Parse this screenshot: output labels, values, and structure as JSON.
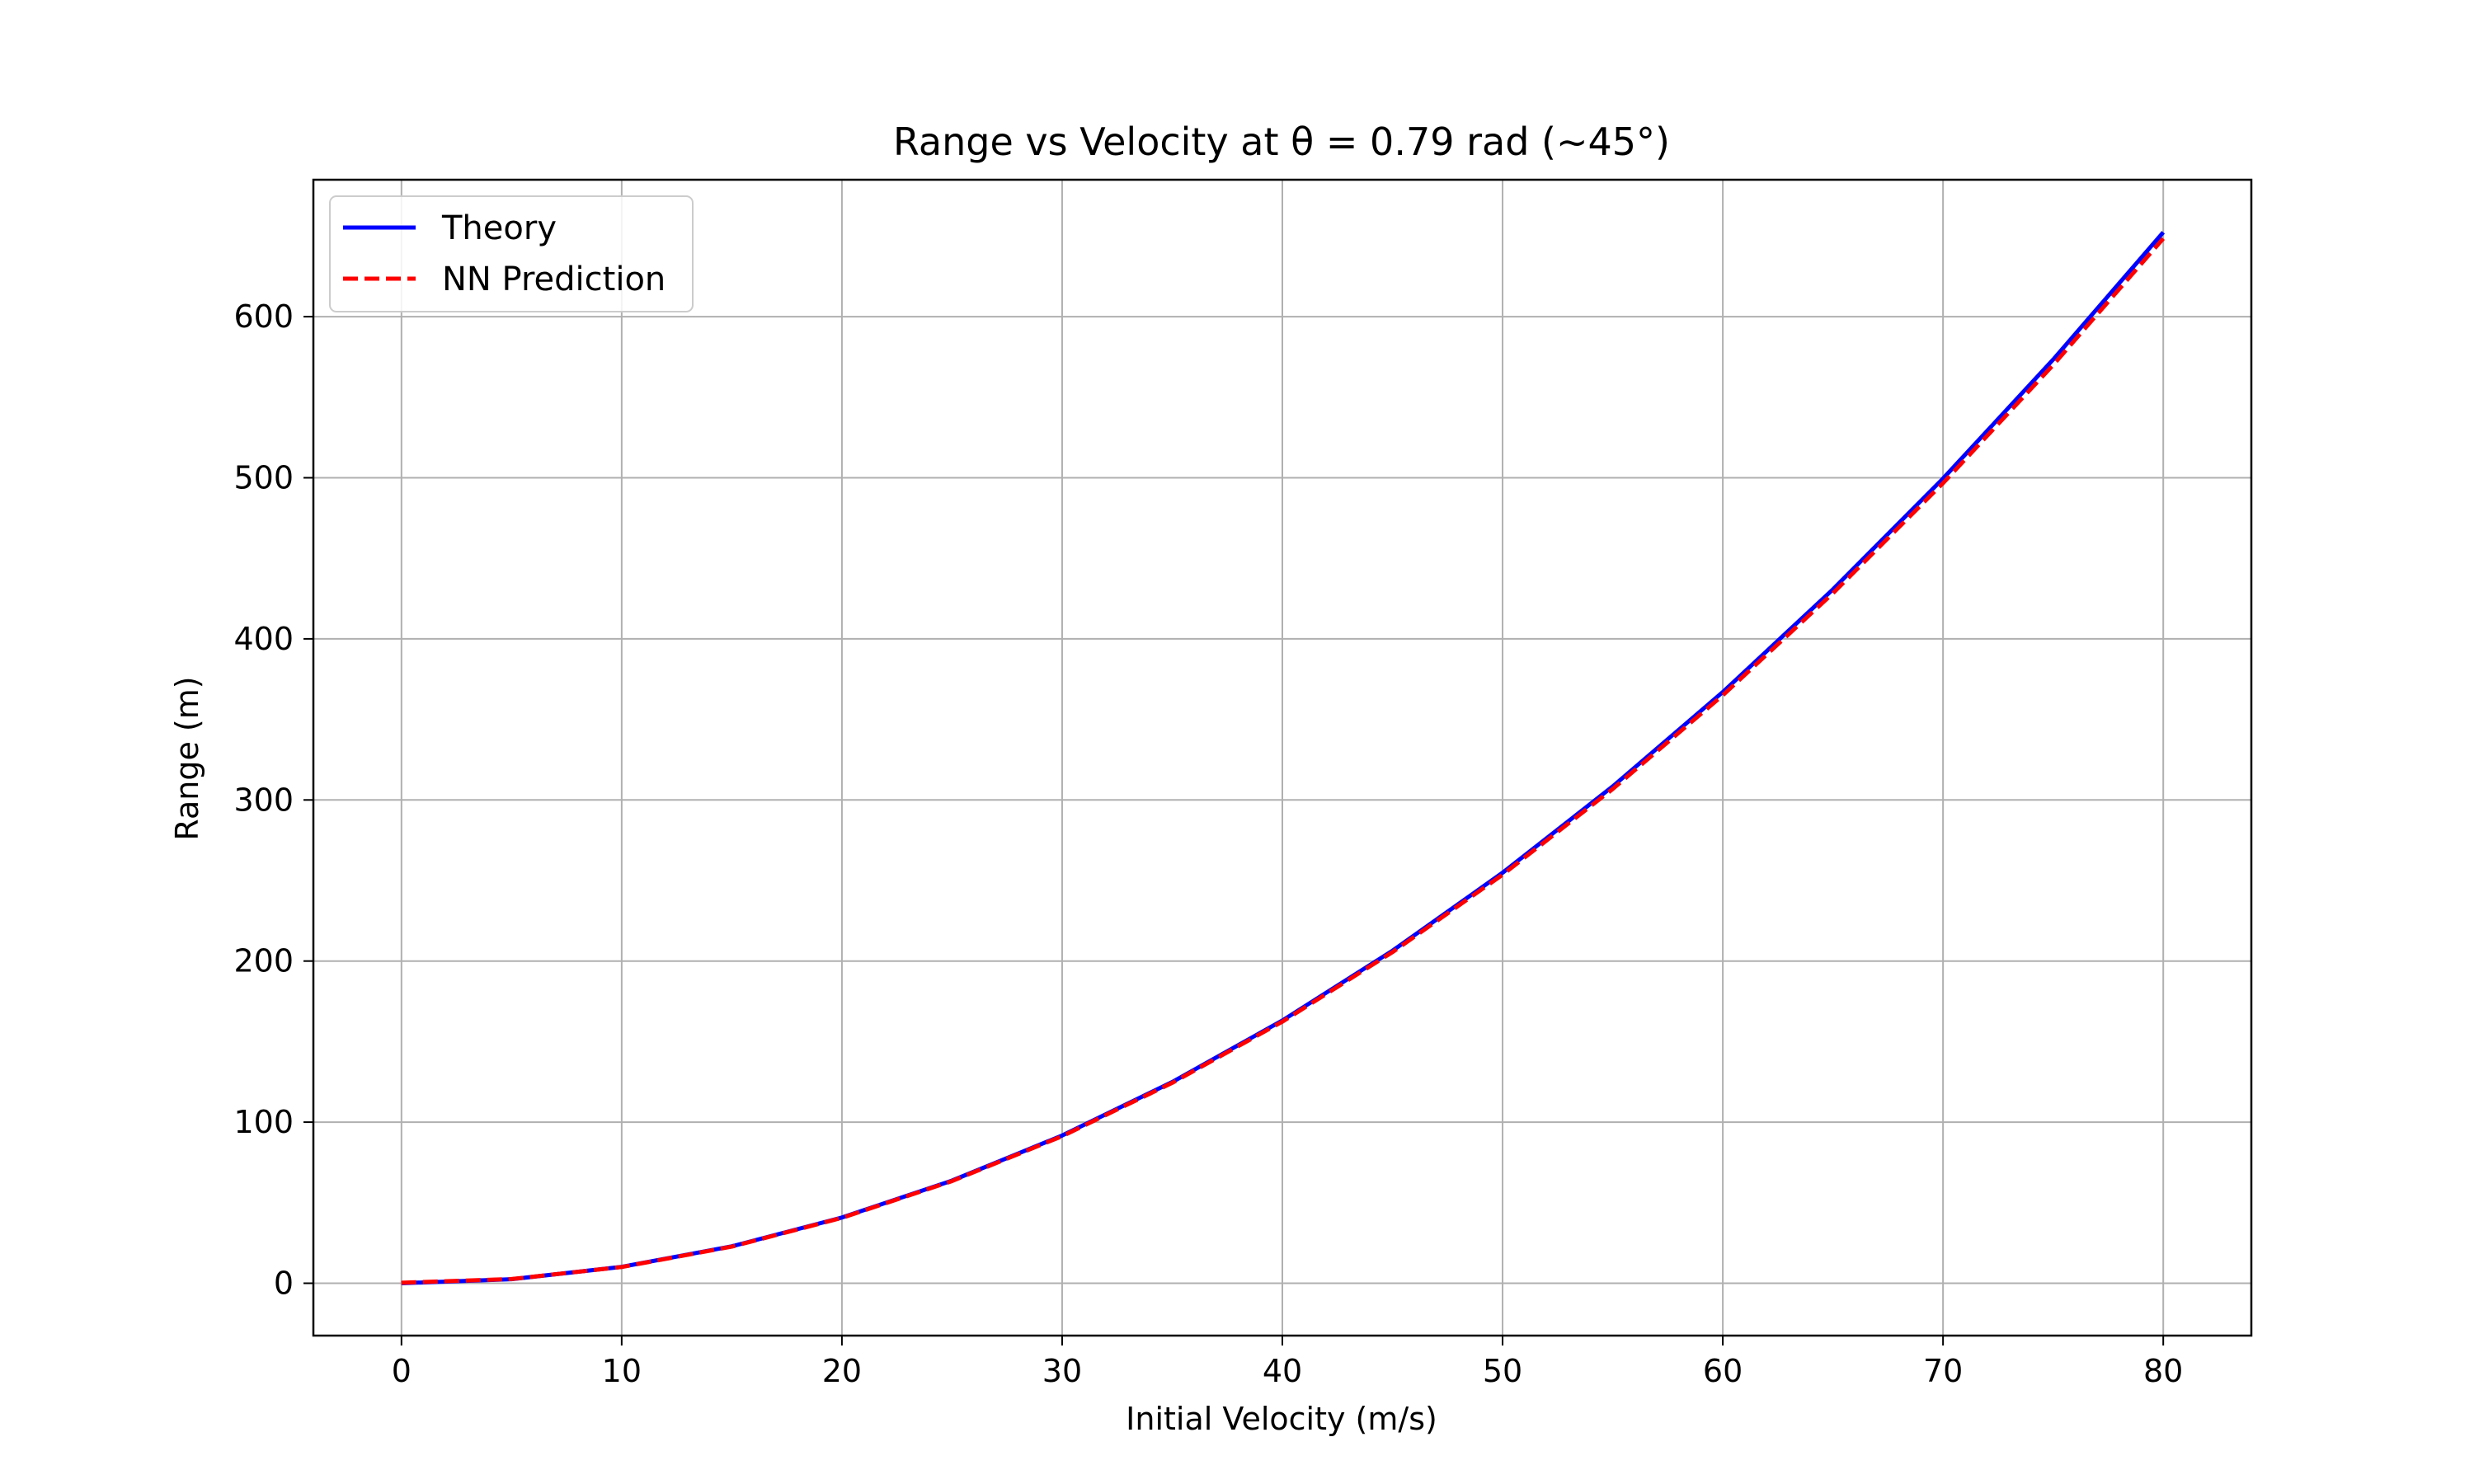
{
  "chart_data": {
    "type": "line",
    "title": "Range vs Velocity at θ = 0.79 rad (~45°)",
    "xlabel": "Initial Velocity (m/s)",
    "ylabel": "Range (m)",
    "xlim": [
      -4,
      84
    ],
    "ylim": [
      -32.5,
      685
    ],
    "xticks": [
      0,
      10,
      20,
      30,
      40,
      50,
      60,
      70,
      80
    ],
    "yticks": [
      0,
      100,
      200,
      300,
      400,
      500,
      600
    ],
    "grid": true,
    "legend_position": "top-left",
    "x": [
      0,
      5,
      10,
      15,
      20,
      25,
      30,
      35,
      40,
      45,
      50,
      55,
      60,
      65,
      70,
      75,
      80
    ],
    "series": [
      {
        "name": "Theory",
        "color": "#0000ff",
        "style": "solid",
        "values": [
          0,
          2.5,
          10.2,
          22.9,
          40.8,
          63.7,
          91.7,
          124.9,
          163.1,
          206.4,
          254.8,
          308.4,
          367.0,
          430.7,
          499.5,
          573.4,
          652.4
        ]
      },
      {
        "name": "NN Prediction",
        "color": "#ff0000",
        "style": "dashed",
        "values": [
          0.3,
          2.6,
          10.1,
          22.7,
          40.6,
          63.4,
          91.3,
          124.4,
          162.4,
          205.5,
          253.6,
          306.8,
          365.0,
          428.3,
          496.6,
          570.0,
          648.5
        ]
      }
    ]
  }
}
